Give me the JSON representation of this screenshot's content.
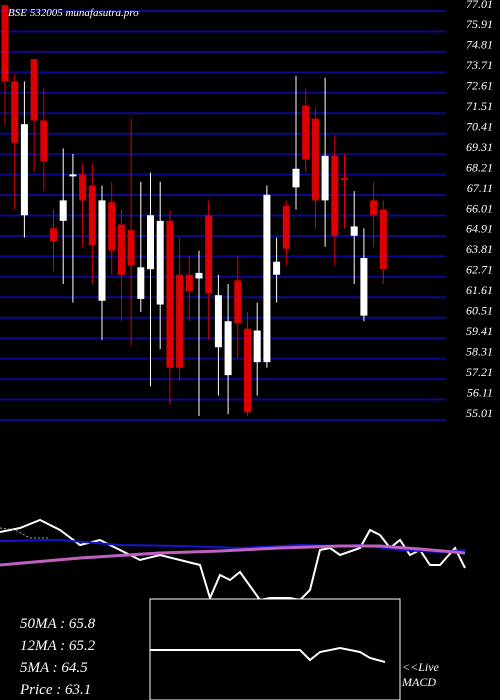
{
  "chart_data": {
    "type": "candlestick",
    "title": "BSE 532005 munafasutra.pro",
    "open": [
      77.0,
      72.9,
      65.7,
      74.1,
      70.8,
      65.0,
      65.4,
      67.8,
      67.9,
      67.3,
      61.1,
      66.4,
      65.2,
      64.9,
      61.2,
      62.8,
      60.9,
      65.4,
      62.5,
      62.5,
      62.3,
      65.7,
      58.6,
      57.1,
      62.2,
      59.6,
      57.8,
      57.8,
      62.5,
      66.2,
      67.2,
      71.6,
      70.9,
      66.5,
      68.9,
      67.7,
      64.6,
      60.3,
      66.5,
      66.0
    ],
    "high": [
      77.0,
      73.3,
      72.9,
      74.1,
      72.5,
      66.0,
      69.3,
      69.0,
      68.5,
      68.5,
      67.3,
      67.5,
      66.0,
      70.9,
      67.5,
      68.0,
      67.5,
      66.0,
      64.5,
      63.5,
      63.8,
      66.5,
      62.5,
      62.0,
      63.5,
      60.5,
      61.0,
      67.3,
      64.5,
      66.5,
      73.2,
      72.5,
      71.5,
      73.1,
      70.0,
      69.0,
      67.0,
      65.0,
      67.5,
      66.5
    ],
    "low": [
      70.5,
      66.0,
      64.5,
      68.0,
      67.0,
      62.7,
      62.0,
      61.0,
      64.0,
      62.0,
      59.0,
      62.5,
      60.0,
      58.7,
      60.5,
      56.5,
      58.5,
      55.5,
      56.8,
      60.0,
      54.9,
      59.0,
      56.0,
      55.0,
      58.0,
      54.9,
      56.0,
      57.5,
      61.0,
      63.0,
      66.0,
      68.0,
      65.0,
      64.0,
      63.0,
      65.0,
      62.0,
      60.0,
      64.0,
      62.0
    ],
    "close": [
      72.9,
      69.6,
      70.6,
      70.8,
      68.6,
      64.3,
      66.5,
      67.9,
      66.5,
      64.1,
      66.5,
      63.8,
      62.5,
      63.0,
      62.9,
      65.7,
      65.4,
      57.5,
      57.5,
      61.6,
      62.6,
      61.5,
      61.4,
      60.0,
      59.9,
      55.1,
      59.5,
      66.8,
      63.2,
      63.9,
      68.2,
      68.7,
      66.5,
      68.9,
      64.6,
      67.6,
      65.1,
      63.4,
      65.7,
      62.8
    ],
    "up_color": "#ffffff",
    "down_color": "#dd0000",
    "grid_color": "#0a0a8c",
    "ylim": [
      55.01,
      77.01
    ],
    "yticks": [
      55.01,
      56.11,
      57.21,
      58.31,
      59.41,
      60.51,
      61.61,
      62.71,
      63.81,
      64.91,
      66.01,
      67.11,
      68.21,
      69.31,
      70.41,
      71.51,
      72.61,
      73.71,
      74.81,
      75.91,
      77.01
    ],
    "stats": [
      "50MA : 65.8",
      "12MA : 65.2",
      "5MA : 64.5",
      "Price   : 63.1"
    ],
    "live_label": "<<Live",
    "macd_label": "MACD"
  }
}
